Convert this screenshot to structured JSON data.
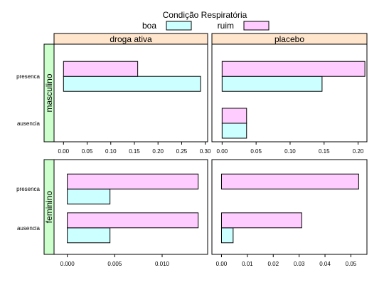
{
  "legend": {
    "title": "Condição Respiratória",
    "items": [
      {
        "label": "boa",
        "color": "#ccffff"
      },
      {
        "label": "ruim",
        "color": "#ffccff"
      }
    ]
  },
  "colors": {
    "strip_top": "#ffe5cc",
    "strip_left": "#ccffcc",
    "boa": "#ccffff",
    "ruim": "#ffccff",
    "border": "#000000"
  },
  "chart_data": {
    "type": "bar",
    "orientation": "horizontal",
    "columns": [
      "droga ativa",
      "placebo"
    ],
    "rows": [
      "masculino",
      "feminino"
    ],
    "categories": [
      "presenca",
      "ausencia"
    ],
    "series_names": [
      "boa",
      "ruim"
    ],
    "panels": [
      {
        "row": "masculino",
        "column": "droga ativa",
        "xlim": [
          -0.02,
          0.305
        ],
        "ticks": [
          0,
          0.05,
          0.1,
          0.15,
          0.2,
          0.25,
          0.3
        ],
        "tick_labels": [
          "0.00",
          "0.05",
          "0.10",
          "0.15",
          "0.20",
          "0.25",
          "0.30"
        ],
        "values": {
          "presenca": {
            "boa": 0.29,
            "ruim": 0.157
          },
          "ausencia": {
            "boa": 0.0,
            "ruim": 0.0
          }
        }
      },
      {
        "row": "masculino",
        "column": "placebo",
        "xlim": [
          -0.015,
          0.213
        ],
        "ticks": [
          0,
          0.05,
          0.1,
          0.15,
          0.2
        ],
        "tick_labels": [
          "0.00",
          "0.05",
          "0.10",
          "0.15",
          "0.20"
        ],
        "values": {
          "presenca": {
            "boa": 0.147,
            "ruim": 0.21
          },
          "ausencia": {
            "boa": 0.036,
            "ruim": 0.036
          }
        }
      },
      {
        "row": "feminino",
        "column": "droga ativa",
        "xlim": [
          -0.0014,
          0.0148
        ],
        "ticks": [
          0,
          0.005,
          0.01
        ],
        "tick_labels": [
          "0.000",
          "0.005",
          "0.010"
        ],
        "values": {
          "presenca": {
            "boa": 0.0045,
            "ruim": 0.0138
          },
          "ausencia": {
            "boa": 0.0045,
            "ruim": 0.0138
          }
        }
      },
      {
        "row": "feminino",
        "column": "placebo",
        "xlim": [
          -0.0037,
          0.0562
        ],
        "ticks": [
          0,
          0.01,
          0.02,
          0.03,
          0.04,
          0.05
        ],
        "tick_labels": [
          "0.00",
          "0.01",
          "0.02",
          "0.03",
          "0.04",
          "0.05"
        ],
        "values": {
          "presenca": {
            "boa": 0.0,
            "ruim": 0.053
          },
          "ausencia": {
            "boa": 0.0045,
            "ruim": 0.031
          }
        }
      }
    ]
  }
}
